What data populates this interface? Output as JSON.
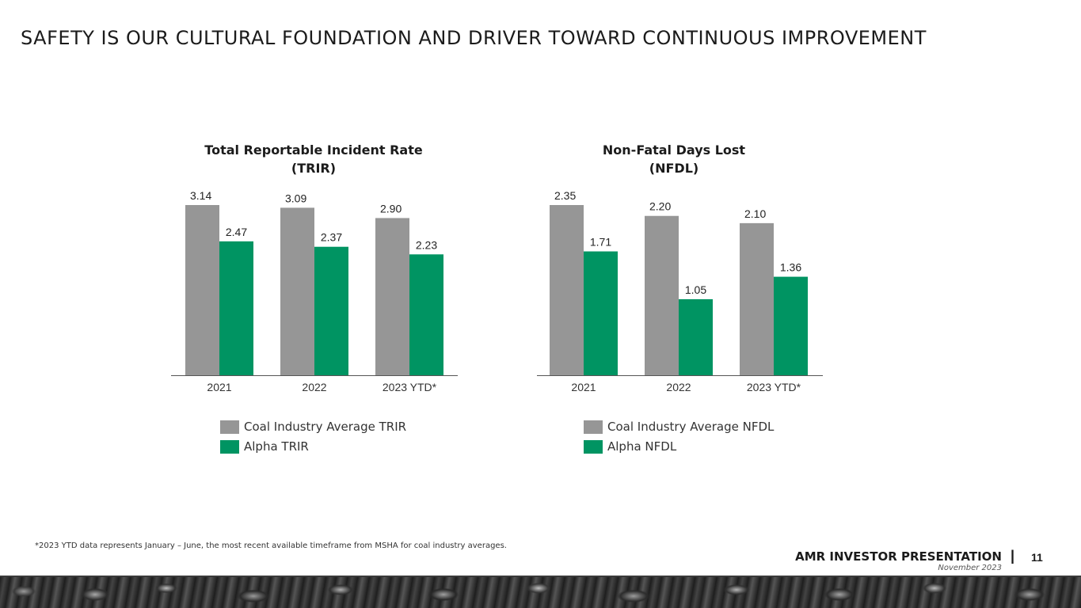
{
  "headline": "SAFETY IS OUR CULTURAL FOUNDATION AND DRIVER TOWARD CONTINUOUS IMPROVEMENT",
  "colors": {
    "industry": "#969696",
    "alpha": "#009462",
    "axis": "#555555"
  },
  "chart_data": [
    {
      "type": "bar",
      "title_lines": [
        "Total Reportable Incident Rate",
        "(TRIR)"
      ],
      "categories": [
        "2021",
        "2022",
        "2023 YTD*"
      ],
      "series": [
        {
          "name": "Coal Industry Average TRIR",
          "values": [
            3.14,
            3.09,
            2.9
          ]
        },
        {
          "name": "Alpha TRIR",
          "values": [
            2.47,
            2.37,
            2.23
          ]
        }
      ],
      "data_labels": [
        [
          "3.14",
          "3.09",
          "2.90"
        ],
        [
          "2.47",
          "2.37",
          "2.23"
        ]
      ],
      "ylim": [
        0,
        3.14
      ],
      "grid": false,
      "legend": "bottom"
    },
    {
      "type": "bar",
      "title_lines": [
        "Non-Fatal Days Lost",
        "(NFDL)"
      ],
      "categories": [
        "2021",
        "2022",
        "2023 YTD*"
      ],
      "series": [
        {
          "name": "Coal Industry Average NFDL",
          "values": [
            2.35,
            2.2,
            2.1
          ]
        },
        {
          "name": "Alpha NFDL",
          "values": [
            1.71,
            1.05,
            1.36
          ]
        }
      ],
      "data_labels": [
        [
          "2.35",
          "2.20",
          "2.10"
        ],
        [
          "1.71",
          "1.05",
          "1.36"
        ]
      ],
      "ylim": [
        0,
        2.35
      ],
      "grid": false,
      "legend": "bottom"
    }
  ],
  "footnote": "*2023 YTD data represents January – June, the most recent available timeframe from MSHA for coal industry averages.",
  "footer": {
    "brand": "AMR INVESTOR PRESENTATION",
    "separator": "|",
    "date": "November 2023",
    "page": "11"
  }
}
